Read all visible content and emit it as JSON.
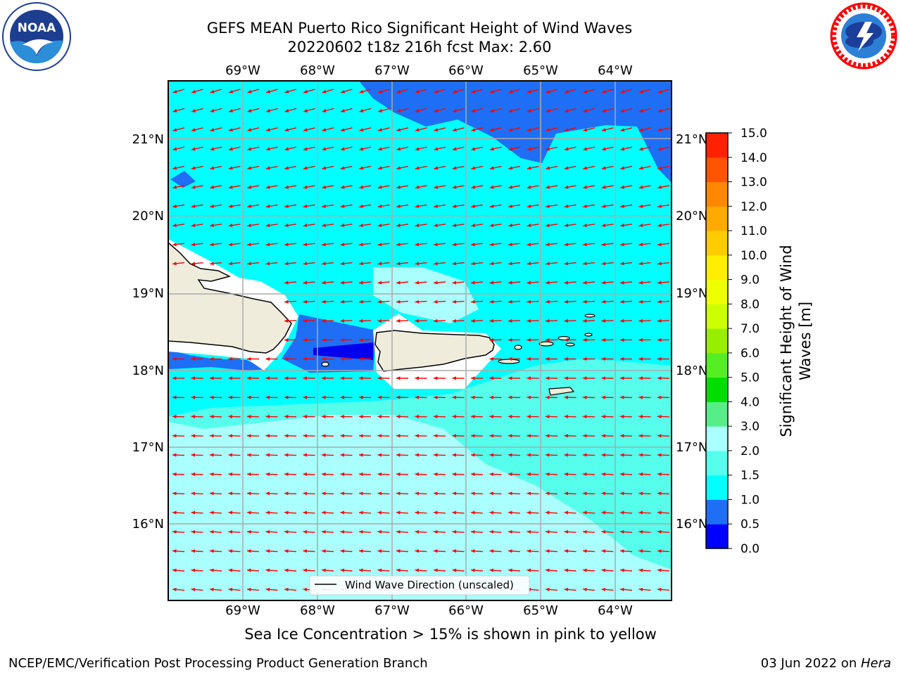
{
  "title": {
    "line1": "GEFS MEAN Puerto Rico Significant Height of Wind Waves",
    "line2": "20220602 t18z 216h fcst   Max: 2.60"
  },
  "logos": {
    "left": {
      "icon": "noaa-logo",
      "text": "NOAA",
      "ring_text": "NATIONAL OCEANIC AND ATMOSPHERIC ADMINISTRATION · U.S. DEPARTMENT OF COMMERCE"
    },
    "right": {
      "icon": "national-weather-service-logo",
      "ring_text": "NATIONAL WEATHER SERVICE"
    }
  },
  "map": {
    "lon_labels": [
      "69°W",
      "68°W",
      "67°W",
      "66°W",
      "65°W",
      "64°W"
    ],
    "lat_labels": [
      "21°N",
      "20°N",
      "19°N",
      "18°N",
      "17°N",
      "16°N"
    ],
    "legend": "Wind Wave Direction (unscaled)",
    "arrow_color": "#ff0000",
    "land_color": "#efecdc",
    "extent": {
      "lon": [
        -70.0,
        -63.25
      ],
      "lat": [
        15.0,
        21.75
      ]
    }
  },
  "colorbar": {
    "label_line1": "Significant Height of Wind",
    "label_line2": "Waves [m]",
    "ticks": [
      "0.0",
      "0.5",
      "1.0",
      "1.5",
      "2.0",
      "3.0",
      "4.0",
      "5.0",
      "6.0",
      "7.0",
      "8.0",
      "9.0",
      "10.0",
      "11.0",
      "12.0",
      "13.0",
      "14.0",
      "15.0"
    ],
    "colors": [
      "#0000ff",
      "#1e6ff5",
      "#00ffff",
      "#55ffec",
      "#aaffff",
      "#55ee88",
      "#00dd00",
      "#55ee22",
      "#99ee00",
      "#ccff00",
      "#eeff00",
      "#ffee00",
      "#ffcc00",
      "#ffaa00",
      "#ff8800",
      "#ff5500",
      "#ff2200"
    ]
  },
  "sea_ice_note": "Sea Ice Concentration > 15% is shown in pink to yellow",
  "footer": {
    "left": "NCEP/EMC/Verification Post Processing Product Generation Branch",
    "right_date": "03 Jun 2022 on ",
    "right_host": "Hera"
  }
}
